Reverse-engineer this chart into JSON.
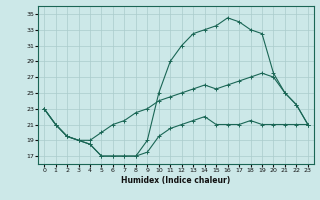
{
  "xlabel": "Humidex (Indice chaleur)",
  "background_color": "#cce8e8",
  "grid_color": "#aacccc",
  "line_color": "#1a6655",
  "xlim": [
    -0.5,
    23.5
  ],
  "ylim": [
    16,
    36
  ],
  "yticks": [
    17,
    19,
    21,
    23,
    25,
    27,
    29,
    31,
    33,
    35
  ],
  "xticks": [
    0,
    1,
    2,
    3,
    4,
    5,
    6,
    7,
    8,
    9,
    10,
    11,
    12,
    13,
    14,
    15,
    16,
    17,
    18,
    19,
    20,
    21,
    22,
    23
  ],
  "line1_x": [
    0,
    1,
    2,
    3,
    4,
    5,
    6,
    7,
    8,
    9,
    10,
    11,
    12,
    13,
    14,
    15,
    16,
    17,
    18,
    19,
    20,
    21,
    22,
    23
  ],
  "line1_y": [
    23,
    21,
    19.5,
    19,
    18.5,
    17,
    17,
    17,
    17,
    17.5,
    19.5,
    20.5,
    21,
    21.5,
    22,
    21,
    21,
    21,
    21.5,
    21,
    21,
    21,
    21,
    21
  ],
  "line2_x": [
    0,
    1,
    2,
    3,
    4,
    5,
    6,
    7,
    8,
    9,
    10,
    11,
    12,
    13,
    14,
    15,
    16,
    17,
    18,
    19,
    20,
    21,
    22,
    23
  ],
  "line2_y": [
    23,
    21,
    19.5,
    19,
    18.5,
    17,
    17,
    17,
    17,
    19,
    25,
    29,
    31,
    32.5,
    33,
    33.5,
    34.5,
    34,
    33,
    32.5,
    27.5,
    25,
    23.5,
    21
  ],
  "line3_x": [
    0,
    1,
    2,
    3,
    4,
    5,
    6,
    7,
    8,
    9,
    10,
    11,
    12,
    13,
    14,
    15,
    16,
    17,
    18,
    19,
    20,
    21,
    22,
    23
  ],
  "line3_y": [
    23,
    21,
    19.5,
    19,
    19,
    20,
    21,
    21.5,
    22.5,
    23,
    24,
    24.5,
    25,
    25.5,
    26,
    25.5,
    26,
    26.5,
    27,
    27.5,
    27,
    25,
    23.5,
    21
  ]
}
